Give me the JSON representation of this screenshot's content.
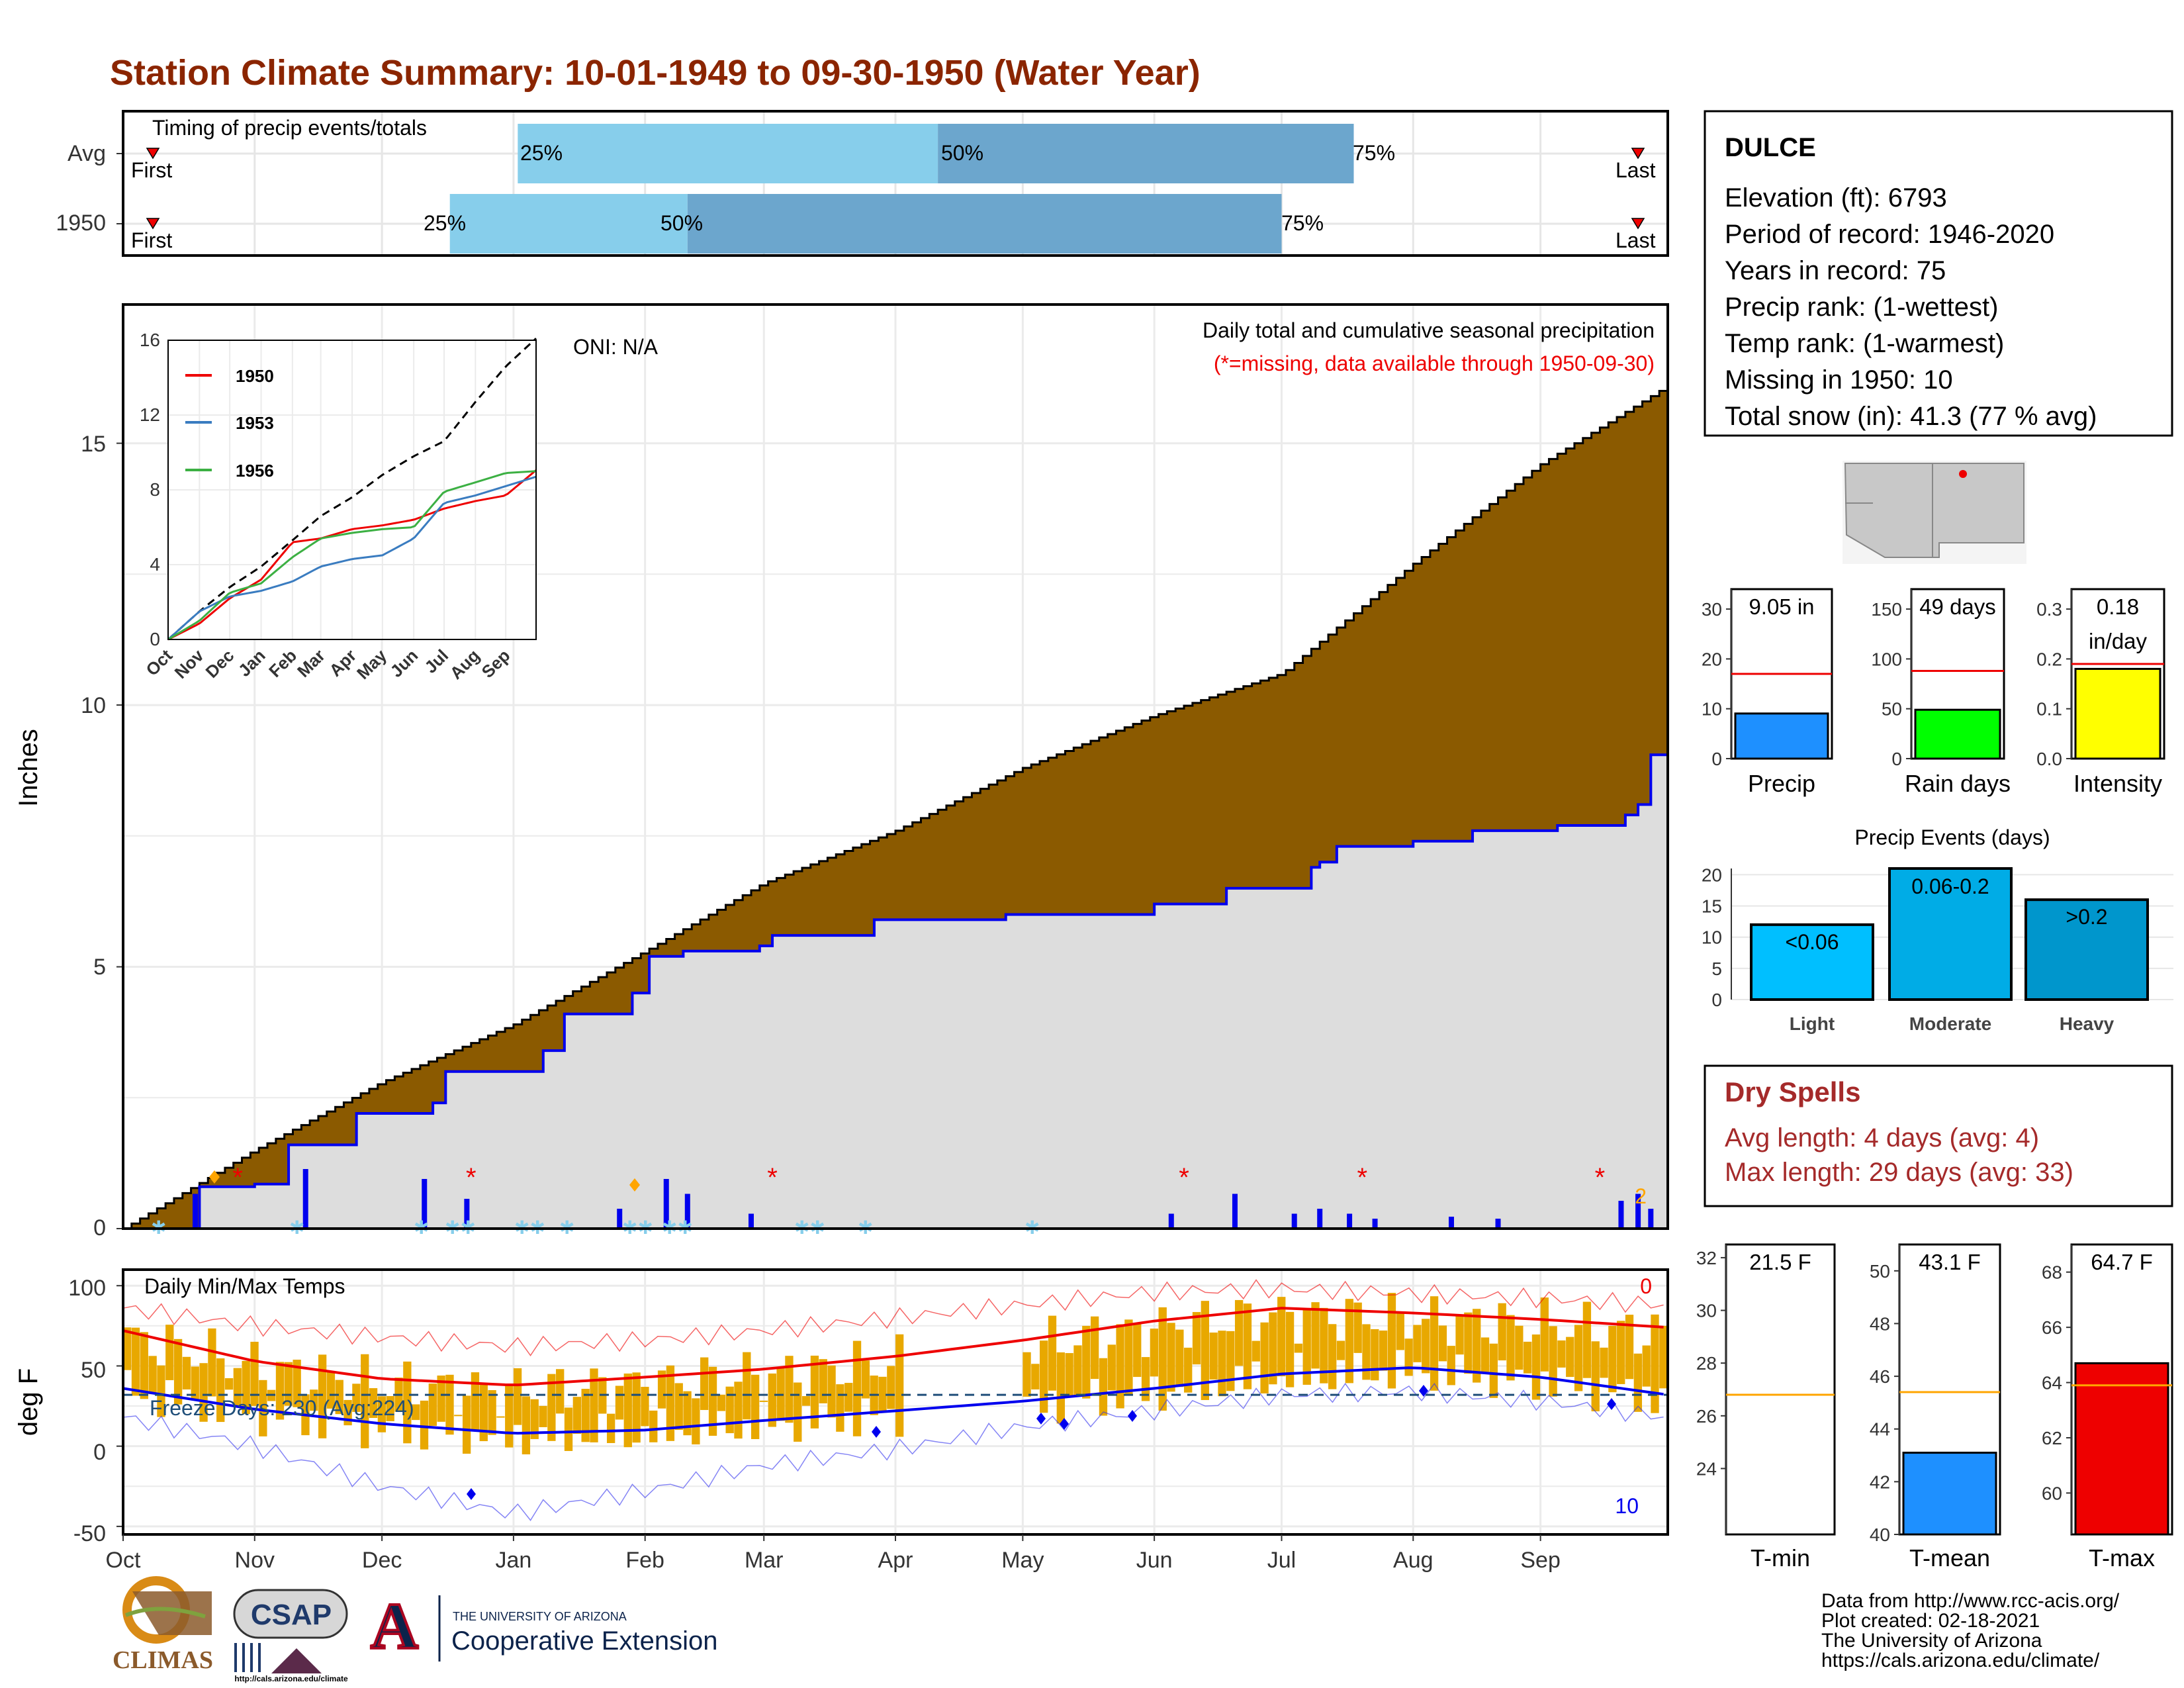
{
  "title": "Station Climate Summary: 10-01-1949 to 09-30-1950 (Water Year)",
  "colors": {
    "title": "#8B2500",
    "q_light": "#87CEEB",
    "q_dark": "#6CA6CD",
    "avg_cum": "#8B5A00",
    "cum_obs": "#DDDDDD",
    "obs_line": "#0000EE",
    "red": "#EE0000",
    "orange_bar": "#E8A800",
    "precip_blue": "#1E90FF",
    "rain_green": "#00FF00",
    "intensity_yellow": "#FFFF00",
    "dry_spell": "#A52A2A"
  },
  "timing": {
    "title": "Timing of precip events/totals",
    "rows": [
      {
        "label": "Avg",
        "q25": "25%",
        "q50": "50%",
        "q75": "75%",
        "first": "First",
        "last": "Last",
        "q25_day": 93,
        "q50_day": 192,
        "q75_day": 290
      },
      {
        "label": "1950",
        "q25": "25%",
        "q50": "50%",
        "q75": "75%",
        "first": "First",
        "last": "Last",
        "q25_day": 77,
        "q50_day": 133,
        "q75_day": 273
      }
    ]
  },
  "station": {
    "name": "DULCE",
    "lines": [
      "Elevation (ft): 6793",
      "Period of record: 1946-2020",
      "Years in record: 75",
      "Precip rank:  (1-wettest)",
      "Temp rank:  (1-warmest)",
      "Missing in 1950: 10",
      "Total snow (in): 41.3 (77 % avg)"
    ]
  },
  "main_precip": {
    "ylabel": "Inches",
    "yticks": [
      "0",
      "5",
      "10",
      "15"
    ],
    "oni": "ONI: N/A",
    "subtitle": "Daily total and cumulative seasonal precipitation",
    "missing_note": "(*=missing, data available through 1950-09-30)",
    "snow_count": "2"
  },
  "months": [
    "Oct",
    "Nov",
    "Dec",
    "Jan",
    "Feb",
    "Mar",
    "Apr",
    "May",
    "Jun",
    "Jul",
    "Aug",
    "Sep"
  ],
  "inset": {
    "yticks": [
      "0",
      "4",
      "8",
      "12",
      "16"
    ],
    "xticks": [
      "Oct",
      "Nov",
      "Dec",
      "Jan",
      "Feb",
      "Mar",
      "Apr",
      "May",
      "Jun",
      "Jul",
      "Aug",
      "Sep"
    ],
    "legend": [
      "1950",
      "1953",
      "1956"
    ]
  },
  "temps": {
    "title": "Daily Min/Max Temps",
    "ylabel": "deg F",
    "yticks": [
      "-50",
      "0",
      "50",
      "100"
    ],
    "freeze": "Freeze Days: 230 (Avg:224)",
    "hot_count": "0",
    "cold_count": "10"
  },
  "mini_precip": [
    {
      "label": "Precip",
      "value_text": "9.05 in",
      "yticks": [
        "0",
        "10",
        "20",
        "30"
      ]
    },
    {
      "label": "Rain days",
      "value_text": "49 days",
      "yticks": [
        "0",
        "50",
        "100",
        "150"
      ]
    },
    {
      "label": "Intensity",
      "value_text": "0.18",
      "value_text2": "in/day",
      "yticks": [
        "0.0",
        "0.1",
        "0.2",
        "0.3"
      ]
    }
  ],
  "events": {
    "title": "Precip Events (days)",
    "yticks": [
      "0",
      "5",
      "10",
      "15",
      "20"
    ],
    "bars": [
      {
        "label": "Light",
        "text": "<0.06"
      },
      {
        "label": "Moderate",
        "text": "0.06-0.2"
      },
      {
        "label": "Heavy",
        "text": ">0.2"
      }
    ]
  },
  "dry_spells": {
    "title": "Dry Spells",
    "avg": "Avg length: 4 days (avg: 4)",
    "max": "Max length: 29 days (avg: 33)"
  },
  "mini_temp": [
    {
      "label": "T-min",
      "value_text": "21.5 F",
      "yticks": [
        "24",
        "26",
        "28",
        "30",
        "32"
      ]
    },
    {
      "label": "T-mean",
      "value_text": "43.1 F",
      "yticks": [
        "40",
        "42",
        "44",
        "46",
        "48",
        "50"
      ]
    },
    {
      "label": "T-max",
      "value_text": "64.7 F",
      "yticks": [
        "60",
        "62",
        "64",
        "66",
        "68"
      ]
    }
  ],
  "credits": [
    "Data from http://www.rcc-acis.org/",
    "Plot created: 02-18-2021",
    "The University of Arizona",
    "https://cals.arizona.edu/climate/"
  ],
  "logos": {
    "climas": "CLIMAS",
    "csap": "CSAP",
    "csap_url": "http://cals.arizona.edu/climate",
    "ua_small": "THE UNIVERSITY OF ARIZONA",
    "ua_big": "Cooperative Extension",
    "ua_letter": "A"
  },
  "chart_data": [
    {
      "type": "area",
      "title": "Daily total and cumulative seasonal precipitation",
      "ylabel": "Inches",
      "ylim": [
        0,
        18
      ],
      "x_unit": "day of water year",
      "series": [
        {
          "name": "average cumulative",
          "x": [
            0,
            31,
            61,
            92,
            123,
            151,
            182,
            212,
            243,
            273,
            304,
            334,
            364
          ],
          "values": [
            0,
            1.5,
            2.8,
            3.9,
            5.3,
            6.6,
            7.6,
            8.8,
            9.8,
            10.6,
            12.7,
            14.6,
            16.1
          ]
        },
        {
          "name": "1950 cumulative",
          "x": [
            0,
            18,
            31,
            39,
            55,
            73,
            76,
            99,
            104,
            120,
            124,
            132,
            150,
            153,
            177,
            208,
            243,
            260,
            280,
            282,
            286,
            304,
            318,
            338,
            354,
            357,
            360,
            364
          ],
          "values": [
            0,
            0.8,
            0.85,
            1.6,
            2.2,
            2.4,
            3.0,
            3.4,
            4.1,
            4.5,
            5.2,
            5.3,
            5.4,
            5.6,
            5.9,
            6.0,
            6.2,
            6.5,
            6.9,
            7.0,
            7.3,
            7.4,
            7.6,
            7.7,
            7.9,
            8.1,
            9.05,
            9.05
          ]
        }
      ],
      "daily_precip": {
        "x": [
          17,
          43,
          71,
          81,
          117,
          128,
          133,
          148,
          247,
          262,
          276,
          282,
          289,
          295,
          313,
          324,
          353,
          357,
          360
        ],
        "values": [
          0.35,
          0.6,
          0.5,
          0.3,
          0.2,
          0.5,
          0.35,
          0.15,
          0.15,
          0.35,
          0.15,
          0.2,
          0.15,
          0.1,
          0.12,
          0.1,
          0.28,
          0.35,
          0.2
        ]
      },
      "missing_days": [
        27,
        82,
        153,
        250,
        292,
        348
      ]
    },
    {
      "type": "line",
      "title": "",
      "ylim": [
        0,
        16
      ],
      "x_unit": "day of water year",
      "series": [
        {
          "name": "average",
          "x": [
            0,
            31,
            61,
            92,
            123,
            151,
            182,
            212,
            243,
            273,
            304,
            334,
            364
          ],
          "values": [
            0,
            1.5,
            2.8,
            3.9,
            5.3,
            6.6,
            7.6,
            8.8,
            9.8,
            10.6,
            12.7,
            14.6,
            16.1
          ]
        },
        {
          "name": "1950",
          "x": [
            0,
            31,
            61,
            92,
            123,
            151,
            182,
            212,
            243,
            273,
            304,
            334,
            364
          ],
          "values": [
            0,
            0.85,
            2.2,
            3.2,
            5.2,
            5.4,
            5.9,
            6.1,
            6.4,
            7.0,
            7.4,
            7.7,
            9.05
          ]
        },
        {
          "name": "1953",
          "x": [
            0,
            31,
            61,
            92,
            123,
            151,
            182,
            212,
            243,
            273,
            304,
            334,
            364
          ],
          "values": [
            0,
            1.5,
            2.3,
            2.6,
            3.1,
            3.9,
            4.3,
            4.5,
            5.4,
            7.3,
            7.7,
            8.2,
            8.7
          ]
        },
        {
          "name": "1956",
          "x": [
            0,
            31,
            61,
            92,
            123,
            151,
            182,
            212,
            243,
            273,
            304,
            334,
            364
          ],
          "values": [
            0,
            1.0,
            2.5,
            3.0,
            4.4,
            5.4,
            5.7,
            5.9,
            6.0,
            7.9,
            8.4,
            8.9,
            9.0
          ]
        }
      ]
    },
    {
      "type": "line",
      "title": "Daily Min/Max Temps",
      "ylabel": "deg F",
      "ylim": [
        -55,
        110
      ],
      "x_unit": "day of water year",
      "series": [
        {
          "name": "avg max",
          "x": [
            0,
            31,
            61,
            92,
            123,
            151,
            182,
            212,
            243,
            273,
            304,
            334,
            364
          ],
          "values": [
            72,
            53,
            42,
            38,
            43,
            48,
            56,
            66,
            78,
            86,
            83,
            79,
            74
          ]
        },
        {
          "name": "avg min",
          "x": [
            0,
            31,
            61,
            92,
            123,
            151,
            182,
            212,
            243,
            273,
            304,
            334,
            364
          ],
          "values": [
            36,
            23,
            14,
            8,
            10,
            16,
            22,
            28,
            36,
            45,
            49,
            43,
            32
          ]
        },
        {
          "name": "record max",
          "x": [
            0,
            31,
            61,
            92,
            123,
            151,
            182,
            212,
            243,
            273,
            304,
            334,
            364
          ],
          "values": [
            86,
            75,
            68,
            62,
            66,
            72,
            80,
            88,
            96,
            98,
            95,
            92,
            88
          ]
        },
        {
          "name": "record min",
          "x": [
            0,
            31,
            61,
            92,
            123,
            151,
            182,
            212,
            243,
            273,
            304,
            334,
            364
          ],
          "values": [
            18,
            0,
            -25,
            -42,
            -28,
            -12,
            -2,
            12,
            22,
            32,
            34,
            28,
            18
          ]
        }
      ],
      "freeze_line": 32
    },
    {
      "type": "bar",
      "title": "",
      "categories": [
        "Precip"
      ],
      "values": [
        9.05
      ],
      "average": 17,
      "ylim": [
        0,
        34
      ]
    },
    {
      "type": "bar",
      "title": "",
      "categories": [
        "Rain days"
      ],
      "values": [
        49
      ],
      "average": 88,
      "ylim": [
        0,
        170
      ]
    },
    {
      "type": "bar",
      "title": "",
      "categories": [
        "Intensity"
      ],
      "values": [
        0.18
      ],
      "average": 0.19,
      "ylim": [
        0,
        0.34
      ]
    },
    {
      "type": "bar",
      "title": "Precip Events (days)",
      "categories": [
        "Light",
        "Moderate",
        "Heavy"
      ],
      "values": [
        12,
        21,
        16
      ],
      "ylim": [
        0,
        21
      ]
    },
    {
      "type": "bar",
      "title": "",
      "categories": [
        "T-min"
      ],
      "values": [
        21.5
      ],
      "average": 26.8,
      "ylim": [
        21.5,
        32.5
      ]
    },
    {
      "type": "bar",
      "title": "",
      "categories": [
        "T-mean"
      ],
      "values": [
        43.1
      ],
      "average": 45.4,
      "ylim": [
        40,
        51
      ]
    },
    {
      "type": "bar",
      "title": "",
      "categories": [
        "T-max"
      ],
      "values": [
        64.7
      ],
      "average": 63.9,
      "ylim": [
        58.5,
        69
      ]
    }
  ]
}
